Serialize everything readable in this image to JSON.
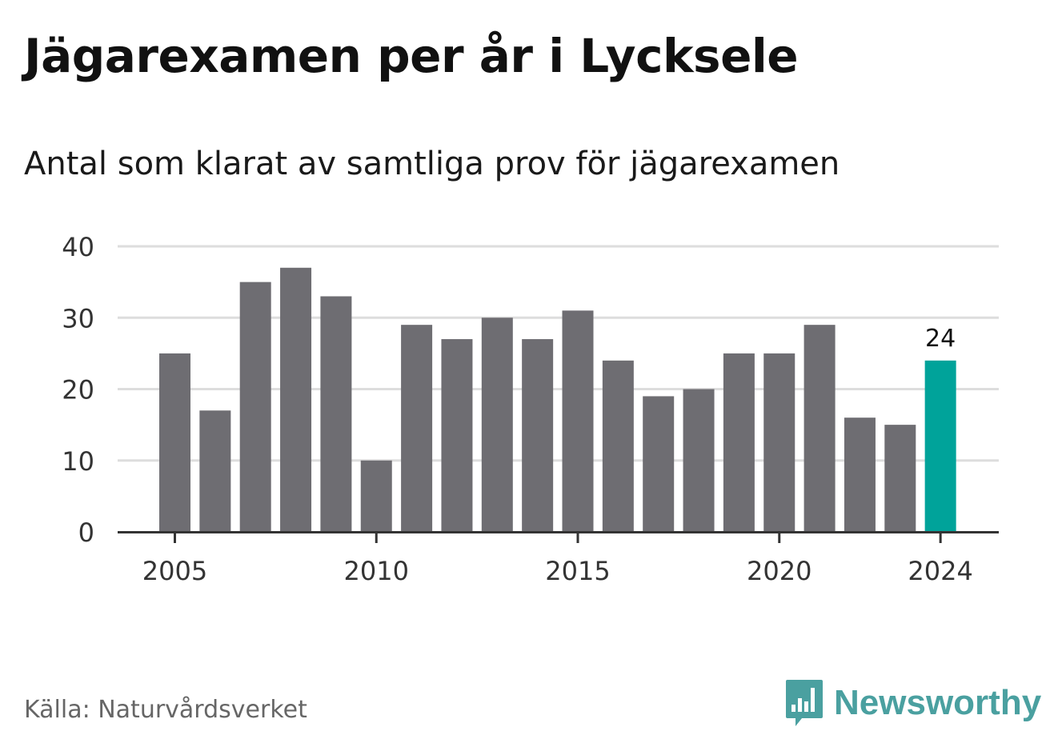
{
  "title": "Jägarexamen per år i Lycksele",
  "subtitle": "Antal som klarat av samtliga prov för jägarexamen",
  "source": "Källa: Naturvårdsverket",
  "brand": {
    "name": "Newsworthy",
    "icon": "newsworthy-logo-icon",
    "color": "#4aa0a0"
  },
  "chart_data": {
    "type": "bar",
    "categories": [
      2005,
      2006,
      2007,
      2008,
      2009,
      2010,
      2011,
      2012,
      2013,
      2014,
      2015,
      2016,
      2017,
      2018,
      2019,
      2020,
      2021,
      2022,
      2023,
      2024
    ],
    "values": [
      25,
      17,
      35,
      37,
      33,
      10,
      29,
      27,
      30,
      27,
      31,
      24,
      19,
      20,
      25,
      25,
      29,
      16,
      15,
      24
    ],
    "ylim": [
      0,
      40
    ],
    "yticks": [
      0,
      10,
      20,
      30,
      40
    ],
    "xtick_labels": [
      2005,
      2010,
      2015,
      2020,
      2024
    ],
    "highlight": {
      "category": 2024,
      "value_label": "24"
    },
    "colors": {
      "bar": "#6e6d72",
      "highlight": "#00a39a",
      "grid": "#dddddd",
      "axis": "#333333"
    },
    "grid": true
  }
}
